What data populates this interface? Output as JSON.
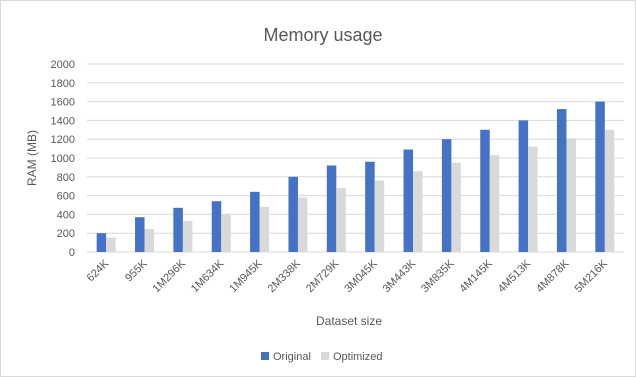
{
  "chart_data": {
    "type": "bar",
    "title": "Memory usage",
    "xlabel": "Dataset size",
    "ylabel": "RAM (MB)",
    "ylim": [
      0,
      2000
    ],
    "yticks": [
      0,
      200,
      400,
      600,
      800,
      1000,
      1200,
      1400,
      1600,
      1800,
      2000
    ],
    "categories": [
      "624K",
      "955K",
      "1M296K",
      "1M634K",
      "1M945K",
      "2M338K",
      "2M729K",
      "3M045K",
      "3M443K",
      "3M835K",
      "4M145K",
      "4M513K",
      "4M878K",
      "5M216K"
    ],
    "series": [
      {
        "name": "Original",
        "color": "#4472c4",
        "values": [
          200,
          370,
          470,
          540,
          640,
          800,
          920,
          960,
          1090,
          1200,
          1300,
          1400,
          1520,
          1600
        ]
      },
      {
        "name": "Optimized",
        "color": "#d9d9d9",
        "values": [
          155,
          245,
          330,
          400,
          480,
          580,
          680,
          760,
          860,
          950,
          1030,
          1120,
          1210,
          1300
        ]
      }
    ],
    "grid": true,
    "legend_position": "bottom"
  }
}
